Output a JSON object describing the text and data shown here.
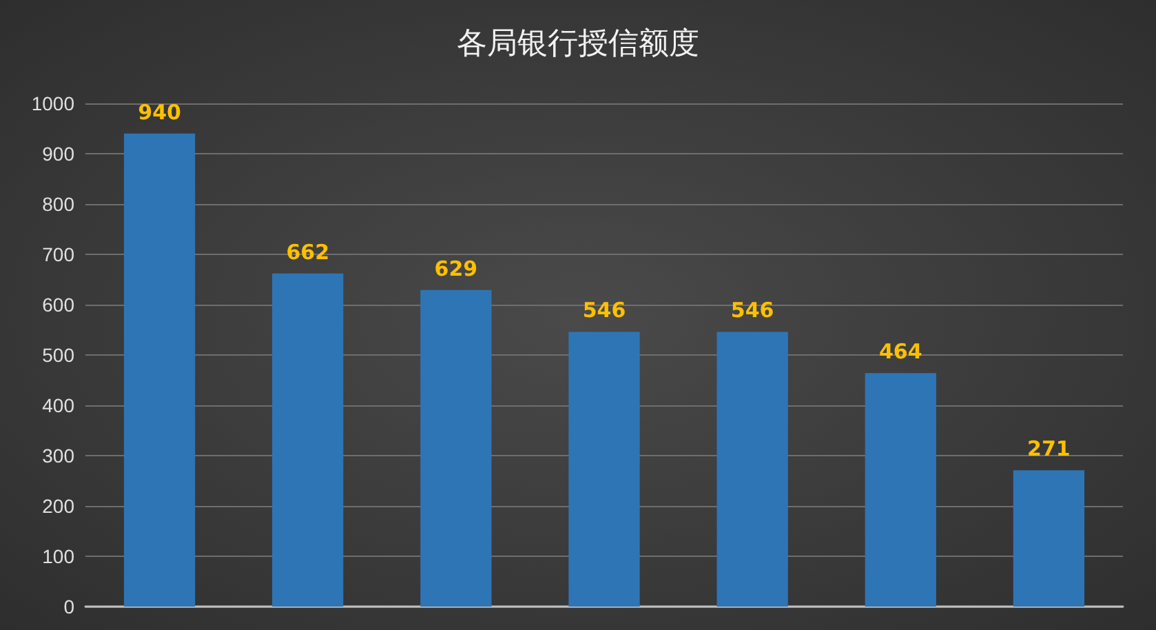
{
  "chart_data": {
    "type": "bar",
    "title": "各局银行授信额度",
    "categories": [
      null,
      null,
      null,
      null,
      null,
      null,
      null
    ],
    "values": [
      940,
      662,
      629,
      546,
      546,
      464,
      271
    ],
    "color": "#2e75b6",
    "ylim": [
      0,
      1000
    ],
    "yticks": [
      0,
      100,
      200,
      300,
      400,
      500,
      600,
      700,
      800,
      900,
      1000
    ],
    "grid": "y",
    "data_labels": true
  }
}
